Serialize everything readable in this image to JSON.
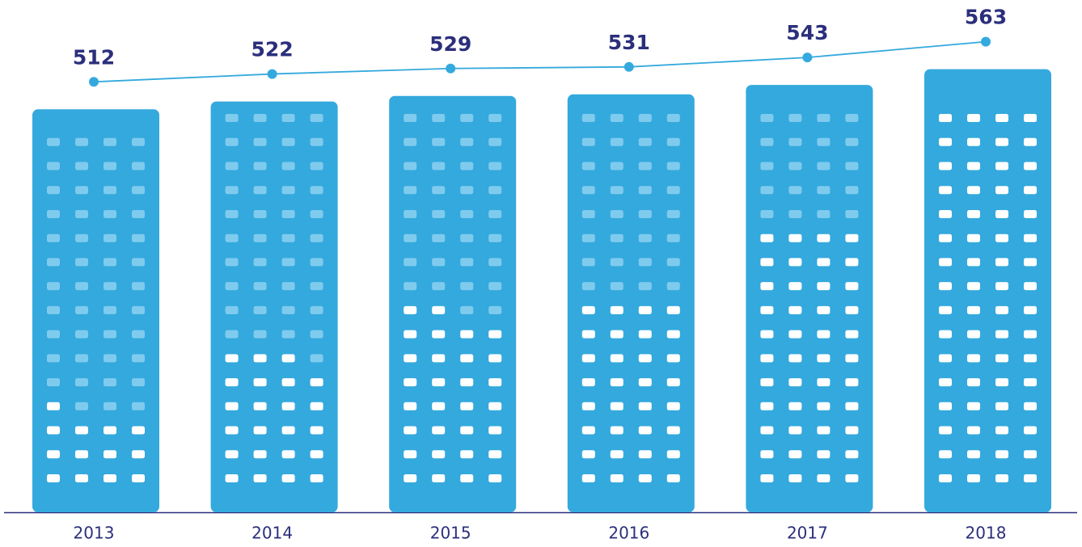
{
  "chart_data": {
    "type": "building-bar-line",
    "categories": [
      "2013",
      "2014",
      "2015",
      "2016",
      "2017",
      "2018"
    ],
    "values": [
      512,
      522,
      529,
      531,
      543,
      563
    ],
    "color": "#34a9dd"
  }
}
